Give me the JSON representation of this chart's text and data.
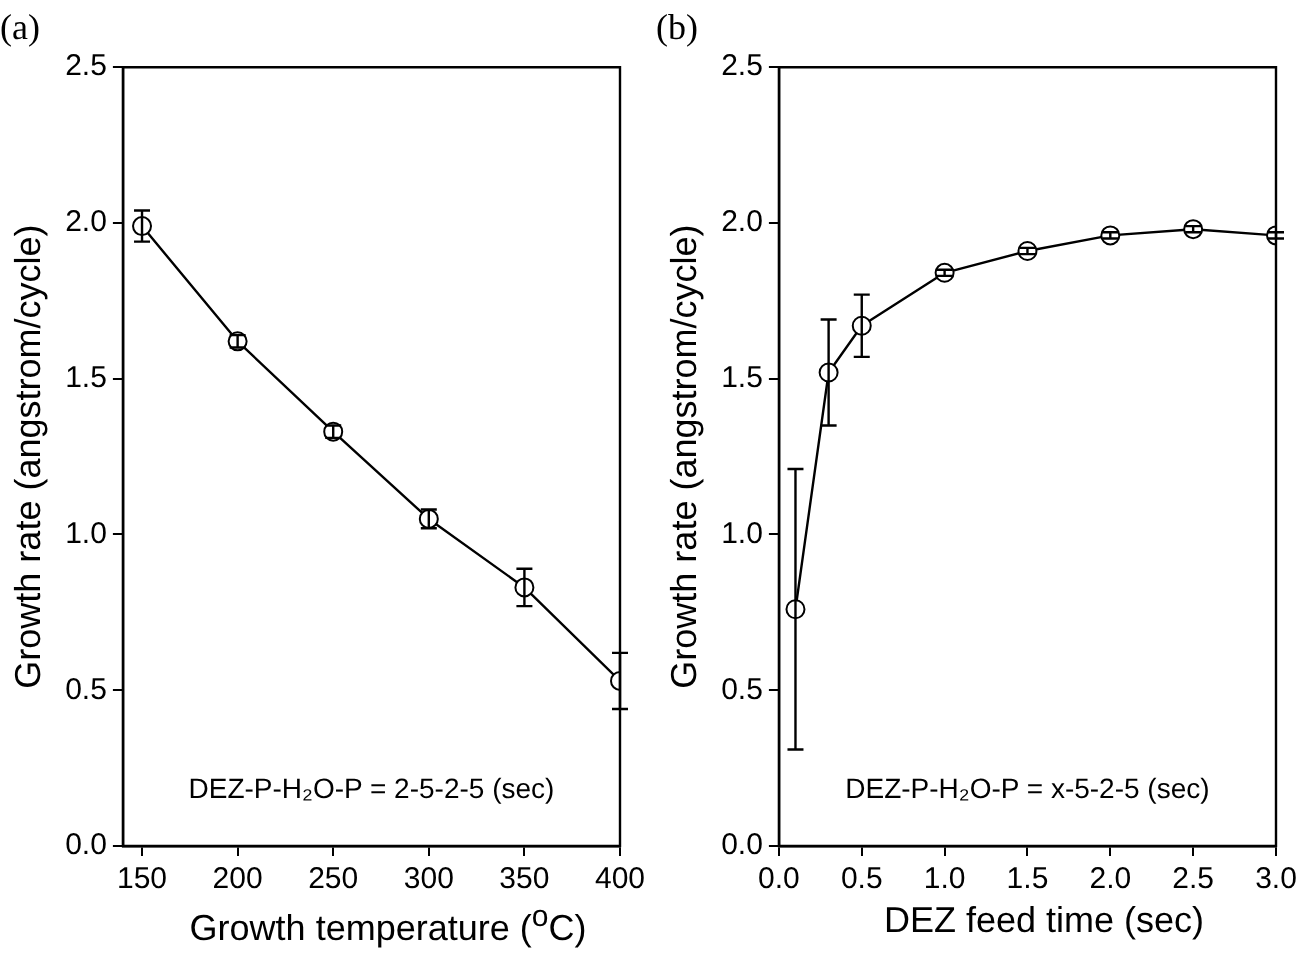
{
  "chart_data": [
    {
      "type": "line",
      "title": "(a)",
      "xlabel": "Growth temperature ($^{o}$C)",
      "ylabel": "Growth rate (angstrom/cycle)",
      "annotations": [
        "DEZ-P-H₂O-P = 2-5-2-5 (sec)"
      ],
      "x": [
        150,
        200,
        250,
        300,
        350,
        400
      ],
      "series": [
        {
          "color": "#000000",
          "values": [
            1.99,
            1.62,
            1.33,
            1.05,
            0.83,
            0.53
          ],
          "errors": [
            0.05,
            0.02,
            0.02,
            0.03,
            0.06,
            0.09
          ]
        }
      ],
      "xlim": [
        140,
        400
      ],
      "xticks": [
        150,
        200,
        250,
        300,
        350,
        400
      ],
      "ylim": [
        0,
        2.5
      ],
      "yticks": [
        {
          "value": 0,
          "label": "0.0"
        },
        {
          "value": 0.5,
          "label": "0.5"
        },
        {
          "value": 1,
          "label": "1.0"
        },
        {
          "value": 1.5,
          "label": "1.5"
        },
        {
          "value": 2,
          "label": "2.0"
        },
        {
          "value": 2.5,
          "label": "2.5"
        }
      ],
      "grid": false,
      "marker": "circle",
      "line_style": "solid"
    },
    {
      "type": "line",
      "title": "(b)",
      "xlabel": "DEZ feed time (sec)",
      "ylabel": "Growth rate (angstrom/cycle)",
      "annotations": [
        "DEZ-P-H₂O-P = x-5-2-5 (sec)"
      ],
      "x": [
        0.1,
        0.3,
        0.5,
        1.0,
        1.5,
        2.0,
        2.5,
        3.0
      ],
      "series": [
        {
          "color": "#000000",
          "values": [
            0.76,
            1.52,
            1.67,
            1.84,
            1.91,
            1.96,
            1.98,
            1.96
          ],
          "errors": [
            0.45,
            0.17,
            0.1,
            0.01,
            0.01,
            0.01,
            0.01,
            0.01
          ]
        }
      ],
      "xlim": [
        0,
        3
      ],
      "xticks": [
        {
          "value": 0,
          "label": "0.0"
        },
        {
          "value": 0.5,
          "label": "0.5"
        },
        {
          "value": 1,
          "label": "1.0"
        },
        {
          "value": 1.5,
          "label": "1.5"
        },
        {
          "value": 2,
          "label": "2.0"
        },
        {
          "value": 2.5,
          "label": "2.5"
        },
        {
          "value": 3,
          "label": "3.0"
        }
      ],
      "ylim": [
        0,
        2.5
      ],
      "yticks": [
        {
          "value": 0,
          "label": "0.0"
        },
        {
          "value": 0.5,
          "label": "0.5"
        },
        {
          "value": 1,
          "label": "1.0"
        },
        {
          "value": 1.5,
          "label": "1.5"
        },
        {
          "value": 2,
          "label": "2.0"
        },
        {
          "value": 2.5,
          "label": "2.5"
        }
      ],
      "grid": false,
      "marker": "circle",
      "line_style": "solid"
    }
  ]
}
